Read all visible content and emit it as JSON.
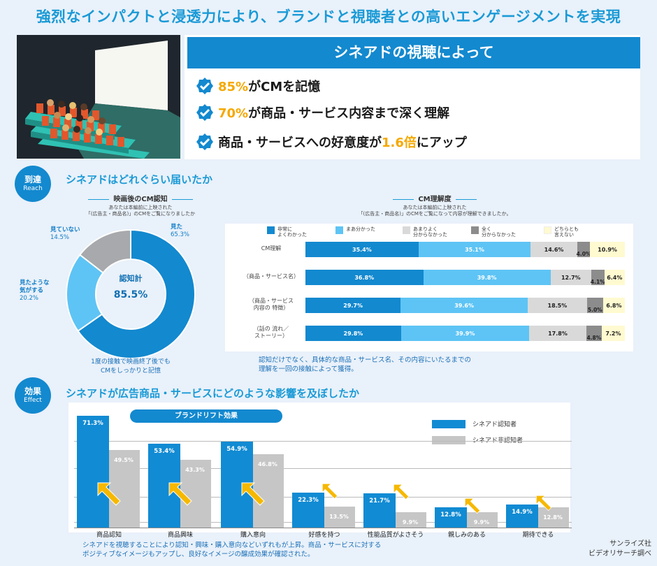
{
  "title": "強烈なインパクトと浸透力により、ブランドと視聴者との高いエンゲージメントを実現",
  "viewing": {
    "banner": "シネアドの視聴によって",
    "stats": [
      {
        "highlight": "85%",
        "text": "がCMを記憶"
      },
      {
        "highlight": "70%",
        "text": "が商品・サービス内容まで深く理解"
      },
      {
        "prefix": "商品・サービスへの好意度が",
        "highlight": "1.6倍",
        "text": "にアップ"
      }
    ]
  },
  "reach": {
    "badge_jp": "到達",
    "badge_en": "Reach",
    "title": "シネアドはどれぐらい届いたか",
    "recognition": {
      "title": "映画後のCM認知",
      "question_line1": "あなたは本編前に上映された",
      "question_line2": "「(広告主・商品名)」のCMをご覧になりましたか",
      "center_label": "認知計",
      "center_value": "85.5%",
      "note_line1": "1度の接触で映画終了後でも",
      "note_line2": "CMをしっかりと記憶",
      "slices": [
        {
          "label": "見た",
          "value": 65.3,
          "pct": "65.3%",
          "color": "#1389cf"
        },
        {
          "label": "見たような気がする",
          "label_line1": "見たような",
          "label_line2": "気がする",
          "value": 20.2,
          "pct": "20.2%",
          "color": "#5ec4f5"
        },
        {
          "label": "見ていない",
          "value": 14.5,
          "pct": "14.5%",
          "color": "#a7a9ac"
        }
      ]
    },
    "understanding": {
      "title": "CM理解度",
      "question_line1": "あなたは本編前に上映された",
      "question_line2": "「(広告主・商品名)」のCMをご覧になって内容が理解できましたか。",
      "legend": [
        {
          "line1": "非常に",
          "line2": "よくわかった",
          "color": "#1389cf"
        },
        {
          "line1": "まあ分かった",
          "line2": "",
          "color": "#5ec4f5"
        },
        {
          "line1": "あまりよく",
          "line2": "分からなかった",
          "color": "#d9d9d9"
        },
        {
          "line1": "全く",
          "line2": "分からなかった",
          "color": "#8c8c8c"
        },
        {
          "line1": "どちらとも",
          "line2": "言えない",
          "color": "#fffad0"
        }
      ],
      "rows": [
        {
          "label_line1": "CM理解",
          "label_line2": "",
          "values": [
            35.4,
            35.1,
            14.6,
            4.0,
            10.9
          ],
          "labels": [
            "35.4%",
            "35.1%",
            "14.6%",
            "4.0%",
            "10.9%"
          ]
        },
        {
          "label_line1": "（商品・サービス名）",
          "label_line2": "",
          "values": [
            36.8,
            39.8,
            12.7,
            4.1,
            6.4
          ],
          "labels": [
            "36.8%",
            "39.8%",
            "12.7%",
            "4.1%",
            "6.4%"
          ]
        },
        {
          "label_line1": "（商品・サービス",
          "label_line2": "内容の 特徴）",
          "values": [
            29.7,
            39.6,
            18.5,
            5.0,
            6.8
          ],
          "labels": [
            "29.7%",
            "39.6%",
            "18.5%",
            "5.0%",
            "6.8%"
          ]
        },
        {
          "label_line1": "（話の 流れ／",
          "label_line2": "ストーリー）",
          "values": [
            29.8,
            39.9,
            17.8,
            4.8,
            7.2
          ],
          "labels": [
            "29.8%",
            "39.9%",
            "17.8%",
            "4.8%",
            "7.2%"
          ]
        }
      ],
      "note_line1": "認知だけでなく、具体的な商品・サービス名、その内容にいたるまでの",
      "note_line2": "理解を一回の接触によって獲得。"
    }
  },
  "effect": {
    "badge_jp": "効果",
    "badge_en": "Effect",
    "title": "シネアドが広告商品・サービスにどのような影響を及ぼしたか",
    "chart_title": "ブランドリフト効果",
    "legend_aware": "シネアド認知者",
    "legend_unaware": "シネアド非認知者",
    "note_line1": "シネアドを視聴することにより認知・興味・購入意向などいずれもが上昇。商品・サービスに対する",
    "note_line2": "ポジティブなイメージもアップし、良好なイメージの醸成効果が確認された。"
  },
  "source_line1": "サンライズ社",
  "source_line2": "ビデオリサーチ調べ",
  "chart_data": [
    {
      "type": "pie",
      "title": "映画後のCM認知",
      "categories": [
        "見た",
        "見たような気がする",
        "見ていない"
      ],
      "values": [
        65.3,
        20.2,
        14.5
      ]
    },
    {
      "type": "bar",
      "title": "CM理解度",
      "orientation": "horizontal-stacked",
      "categories": [
        "CM理解",
        "（商品・サービス名）",
        "（商品・サービス内容の 特徴）",
        "（話の 流れ／ストーリー）"
      ],
      "series": [
        {
          "name": "非常によくわかった",
          "values": [
            35.4,
            36.8,
            29.7,
            29.8
          ]
        },
        {
          "name": "まあ分かった",
          "values": [
            35.1,
            39.8,
            39.6,
            39.9
          ]
        },
        {
          "name": "あまりよく分からなかった",
          "values": [
            14.6,
            12.7,
            18.5,
            17.8
          ]
        },
        {
          "name": "全く分からなかった",
          "values": [
            4.0,
            4.1,
            5.0,
            4.8
          ]
        },
        {
          "name": "どちらとも言えない",
          "values": [
            10.9,
            6.4,
            6.8,
            7.2
          ]
        }
      ]
    },
    {
      "type": "bar",
      "title": "ブランドリフト効果",
      "categories": [
        "商品認知",
        "商品興味",
        "購入意向",
        "好感を持つ",
        "性能品質がよさそう",
        "親しみのある",
        "期待できる"
      ],
      "series": [
        {
          "name": "シネアド認知者",
          "values": [
            71.3,
            53.4,
            54.9,
            22.3,
            21.7,
            12.8,
            14.9
          ],
          "labels": [
            "71.3%",
            "53.4%",
            "54.9%",
            "22.3%",
            "21.7%",
            "12.8%",
            "14.9%"
          ]
        },
        {
          "name": "シネアド非認知者",
          "values": [
            49.5,
            43.3,
            46.8,
            13.5,
            9.9,
            9.9,
            12.8
          ],
          "labels": [
            "49.5%",
            "43.3%",
            "46.8%",
            "13.5%",
            "9.9%",
            "9.9%",
            "12.8%"
          ]
        }
      ],
      "ylim": [
        0,
        75
      ]
    }
  ]
}
